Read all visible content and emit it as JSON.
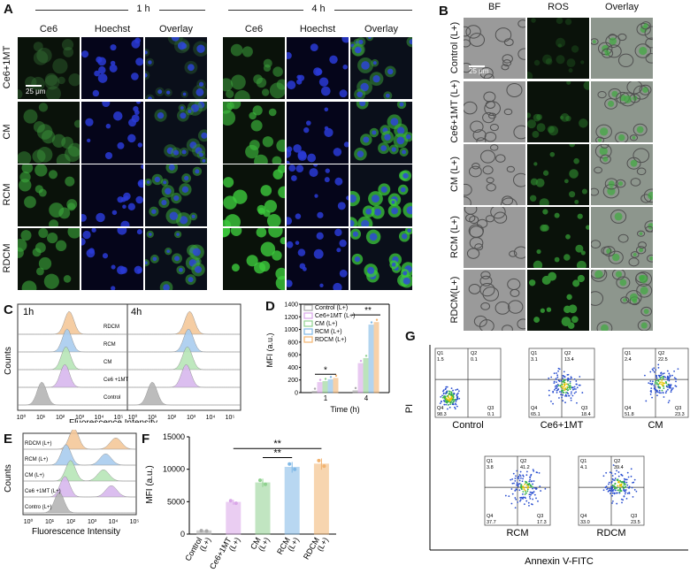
{
  "panelA": {
    "label": "A",
    "time1": "1 h",
    "time2": "4 h",
    "columns": [
      "Ce6",
      "Hoechst",
      "Overlay"
    ],
    "rows": [
      "Ce6+1MT",
      "CM",
      "RCM",
      "RDCM"
    ],
    "scalebar": "25 μm"
  },
  "panelB": {
    "label": "B",
    "columns": [
      "BF",
      "ROS",
      "Overlay"
    ],
    "rows": [
      "Control (L+)",
      "Ce6+1MT (L+)",
      "CM (L+)",
      "RCM (L+)",
      "RDCM(L+)"
    ],
    "scalebar": "25 μm"
  },
  "panelC": {
    "label": "C",
    "ylabel": "Counts",
    "xlabel": "Fluorescence Intensity",
    "sub1": "1h",
    "sub2": "4h",
    "groups": [
      "RDCM",
      "RCM",
      "CM",
      "Ce6 +1MT",
      "Control"
    ],
    "ticks": [
      "10⁰",
      "10¹",
      "10²",
      "10³",
      "10⁴",
      "10⁵"
    ],
    "colors": [
      "#f5c89a",
      "#a9cdef",
      "#b7e6b7",
      "#d8b7ee",
      "#b5b5b5"
    ]
  },
  "panelE": {
    "label": "E",
    "ylabel": "Counts",
    "xlabel": "Fluorescence Intensity",
    "groups": [
      "RDCM (L+)",
      "RCM (L+)",
      "CM (L+)",
      "Ce6 +1MT (L+)",
      "Contro (L+)"
    ],
    "ticks": [
      "10⁰",
      "10¹",
      "10²",
      "10³",
      "10⁴",
      "10⁵"
    ]
  },
  "panelG": {
    "label": "G",
    "ylabel": "PI",
    "xlabel": "Annexin V-FITC",
    "plots": [
      {
        "name": "Control",
        "q1": "Q1",
        "q1v": "1.5",
        "q2": "Q2",
        "q2v": "0.1",
        "q3": "Q3",
        "q3v": "0.1",
        "q4": "Q4",
        "q4v": "98.3"
      },
      {
        "name": "Ce6+1MT",
        "q1": "Q1",
        "q1v": "3.1",
        "q2": "Q2",
        "q2v": "13.4",
        "q3": "Q3",
        "q3v": "18.4",
        "q4": "Q4",
        "q4v": "65.1"
      },
      {
        "name": "CM",
        "q1": "Q1",
        "q1v": "2.4",
        "q2": "Q2",
        "q2v": "22.5",
        "q3": "Q3",
        "q3v": "23.3",
        "q4": "Q4",
        "q4v": "51.8"
      },
      {
        "name": "RCM",
        "q1": "Q1",
        "q1v": "3.8",
        "q2": "Q2",
        "q2v": "41.2",
        "q3": "Q3",
        "q3v": "17.3",
        "q4": "Q4",
        "q4v": "37.7"
      },
      {
        "name": "RDCM",
        "q1": "Q1",
        "q1v": "4.1",
        "q2": "Q2",
        "q2v": "39.4",
        "q3": "Q3",
        "q3v": "23.5",
        "q4": "Q4",
        "q4v": "33.0"
      }
    ]
  },
  "chart_data": [
    {
      "id": "D",
      "type": "bar",
      "title": "",
      "xlabel": "Time (h)",
      "ylabel": "MFI (a.u.)",
      "ylim": [
        0,
        1400
      ],
      "yticks": [
        "0",
        "200",
        "400",
        "600",
        "800",
        "1000",
        "1200",
        "1400"
      ],
      "categories": [
        "1",
        "4"
      ],
      "legend": "top-left",
      "sig": [
        "*",
        "**"
      ],
      "series": [
        {
          "name": "Control (L+)",
          "color": "#a8a8a8",
          "values": [
            20,
            30
          ]
        },
        {
          "name": "Ce6+1MT (L+)",
          "color": "#d9a6e8",
          "values": [
            160,
            460
          ]
        },
        {
          "name": "CM (L+)",
          "color": "#8fd18f",
          "values": [
            175,
            540
          ]
        },
        {
          "name": "RCM (L+)",
          "color": "#7fb8e6",
          "values": [
            205,
            1070
          ]
        },
        {
          "name": "RDCM (L+)",
          "color": "#f2b36f",
          "values": [
            225,
            1110
          ]
        }
      ]
    },
    {
      "id": "F",
      "type": "bar",
      "title": "",
      "xlabel": "",
      "ylabel": "MFI (a.u.)",
      "ylim": [
        0,
        15000
      ],
      "yticks": [
        "0",
        "5000",
        "10000",
        "15000"
      ],
      "categories": [
        "Control (L+)",
        "Ce6+1MT (L+)",
        "CM (L+)",
        "RCM (L+)",
        "RDCM (L+)"
      ],
      "catlines": [
        [
          "Control",
          "(L+)"
        ],
        [
          "Ce6+1MT",
          "(L+)"
        ],
        [
          "CM",
          "(L+)"
        ],
        [
          "RCM",
          "(L+)"
        ],
        [
          "RDCM",
          "(L+)"
        ]
      ],
      "sig": [
        "**",
        "**"
      ],
      "series": [
        {
          "name": "",
          "values": [
            500,
            4900,
            7900,
            10300,
            10800
          ]
        }
      ],
      "colors": [
        "#a8a8a8",
        "#d9a6e8",
        "#8fd18f",
        "#7fb8e6",
        "#f2b36f"
      ]
    }
  ]
}
